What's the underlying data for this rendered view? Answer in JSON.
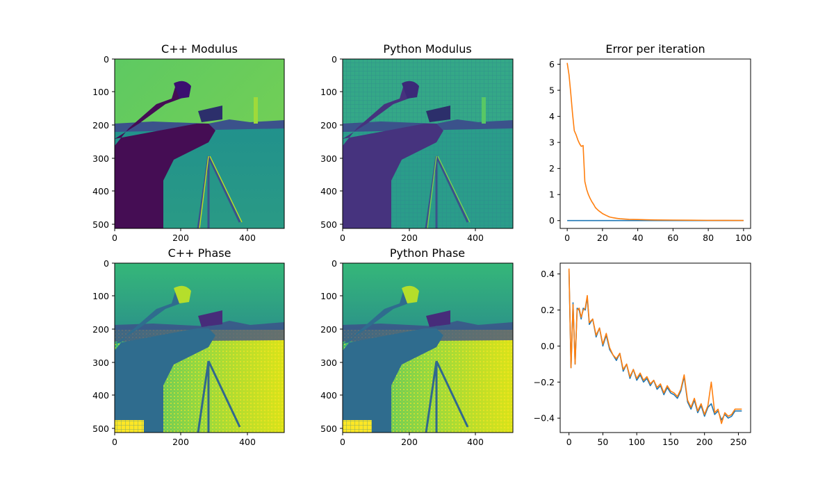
{
  "figure": {
    "panels": [
      {
        "id": "cpp_modulus",
        "title": "C++ Modulus",
        "kind": "image",
        "colormap": "viridis",
        "x_ticks": [
          "0",
          "200",
          "400"
        ],
        "y_ticks": [
          "0",
          "100",
          "200",
          "300",
          "400",
          "500"
        ]
      },
      {
        "id": "py_modulus",
        "title": "Python Modulus",
        "kind": "image",
        "colormap": "viridis",
        "x_ticks": [
          "0",
          "200",
          "400"
        ],
        "y_ticks": [
          "0",
          "100",
          "200",
          "300",
          "400",
          "500"
        ]
      },
      {
        "id": "cpp_phase",
        "title": "C++ Phase",
        "kind": "image",
        "colormap": "viridis",
        "x_ticks": [
          "0",
          "200",
          "400"
        ],
        "y_ticks": [
          "0",
          "100",
          "200",
          "300",
          "400",
          "500"
        ]
      },
      {
        "id": "py_phase",
        "title": "Python Phase",
        "kind": "image",
        "colormap": "viridis",
        "x_ticks": [
          "0",
          "200",
          "400"
        ],
        "y_ticks": [
          "0",
          "100",
          "200",
          "300",
          "400",
          "500"
        ]
      }
    ]
  },
  "chart_data": [
    {
      "type": "line",
      "title": "Error per iteration",
      "xlabel": "",
      "ylabel": "",
      "xlim": [
        -4,
        104
      ],
      "ylim": [
        -0.3,
        6.2
      ],
      "x_ticks": [
        0,
        20,
        40,
        60,
        80,
        100
      ],
      "y_ticks": [
        0,
        1,
        2,
        3,
        4,
        5,
        6
      ],
      "grid": false,
      "series": [
        {
          "color": "#1f77b4",
          "x": [
            0,
            100
          ],
          "y": [
            0,
            0
          ]
        },
        {
          "color": "#ff7f0e",
          "x": [
            0,
            1,
            2,
            3,
            4,
            5,
            6,
            7,
            8,
            9,
            10,
            11,
            12,
            13,
            14,
            15,
            16,
            17,
            18,
            19,
            20,
            22,
            24,
            26,
            28,
            30,
            35,
            40,
            45,
            50,
            60,
            70,
            80,
            90,
            100
          ],
          "y": [
            6.05,
            5.6,
            4.9,
            4.1,
            3.45,
            3.3,
            3.1,
            2.95,
            2.85,
            2.88,
            1.5,
            1.2,
            1.0,
            0.85,
            0.72,
            0.62,
            0.5,
            0.43,
            0.37,
            0.32,
            0.27,
            0.2,
            0.14,
            0.11,
            0.09,
            0.07,
            0.05,
            0.04,
            0.03,
            0.025,
            0.02,
            0.015,
            0.01,
            0.008,
            0.005
          ]
        }
      ]
    },
    {
      "type": "line",
      "title": "",
      "xlabel": "",
      "ylabel": "",
      "xlim": [
        -13,
        268
      ],
      "ylim": [
        -0.48,
        0.46
      ],
      "x_ticks": [
        0,
        50,
        100,
        150,
        200,
        250
      ],
      "y_ticks": [
        -0.4,
        -0.2,
        0.0,
        0.2,
        0.4
      ],
      "y_tick_labels": [
        "−0.4",
        "−0.2",
        "0.0",
        "0.2",
        "0.4"
      ],
      "grid": false,
      "series": [
        {
          "color": "#1f77b4",
          "x": [
            0,
            3,
            6,
            9,
            12,
            15,
            18,
            21,
            24,
            27,
            30,
            35,
            40,
            45,
            50,
            55,
            60,
            65,
            70,
            75,
            80,
            85,
            90,
            95,
            100,
            105,
            110,
            115,
            120,
            125,
            130,
            135,
            140,
            145,
            150,
            155,
            160,
            165,
            170,
            175,
            180,
            185,
            190,
            195,
            200,
            205,
            210,
            215,
            220,
            225,
            230,
            235,
            240,
            245,
            250,
            255
          ],
          "y": [
            0.42,
            -0.12,
            0.24,
            -0.1,
            0.21,
            0.2,
            0.15,
            0.21,
            0.2,
            0.27,
            0.12,
            0.15,
            0.05,
            0.1,
            0.0,
            0.06,
            -0.02,
            -0.05,
            -0.08,
            -0.04,
            -0.14,
            -0.1,
            -0.18,
            -0.13,
            -0.19,
            -0.16,
            -0.2,
            -0.18,
            -0.22,
            -0.19,
            -0.24,
            -0.22,
            -0.27,
            -0.23,
            -0.26,
            -0.27,
            -0.29,
            -0.25,
            -0.17,
            -0.31,
            -0.35,
            -0.3,
            -0.37,
            -0.33,
            -0.39,
            -0.34,
            -0.32,
            -0.38,
            -0.36,
            -0.41,
            -0.38,
            -0.4,
            -0.39,
            -0.36,
            -0.36,
            -0.36
          ]
        },
        {
          "color": "#ff7f0e",
          "x": [
            0,
            3,
            6,
            9,
            12,
            15,
            18,
            21,
            24,
            27,
            30,
            35,
            40,
            45,
            50,
            55,
            60,
            65,
            70,
            75,
            80,
            85,
            90,
            95,
            100,
            105,
            110,
            115,
            120,
            125,
            130,
            135,
            140,
            145,
            150,
            155,
            160,
            165,
            170,
            175,
            180,
            185,
            190,
            195,
            200,
            205,
            210,
            215,
            220,
            225,
            230,
            235,
            240,
            245,
            250,
            255
          ],
          "y": [
            0.43,
            -0.12,
            0.23,
            -0.1,
            0.2,
            0.21,
            0.16,
            0.2,
            0.21,
            0.28,
            0.13,
            0.15,
            0.06,
            0.1,
            0.01,
            0.07,
            -0.01,
            -0.05,
            -0.07,
            -0.04,
            -0.13,
            -0.1,
            -0.17,
            -0.13,
            -0.18,
            -0.15,
            -0.19,
            -0.17,
            -0.21,
            -0.19,
            -0.23,
            -0.21,
            -0.26,
            -0.22,
            -0.25,
            -0.26,
            -0.28,
            -0.24,
            -0.16,
            -0.3,
            -0.34,
            -0.29,
            -0.36,
            -0.32,
            -0.38,
            -0.33,
            -0.2,
            -0.37,
            -0.35,
            -0.43,
            -0.37,
            -0.39,
            -0.38,
            -0.35,
            -0.35,
            -0.35
          ]
        }
      ]
    }
  ]
}
